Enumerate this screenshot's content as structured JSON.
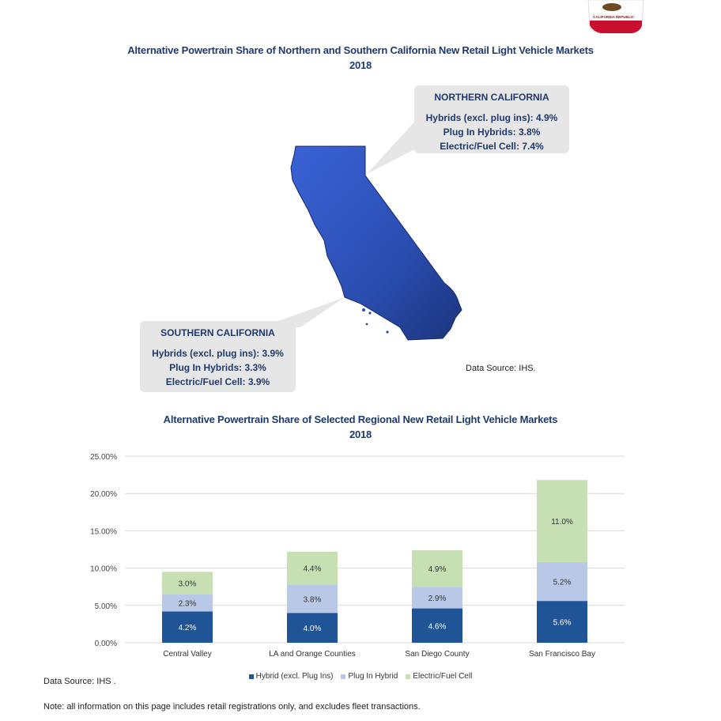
{
  "map_section": {
    "title_line1": "Alternative Powertrain Share of Northern and Southern California New Retail Light Vehicle Markets",
    "title_line2": "2018",
    "north": {
      "heading": "NORTHERN CALIFORNIA",
      "line1": "Hybrids (excl. plug ins): 4.9%",
      "line2": "Plug In Hybrids: 3.8%",
      "line3": "Electric/Fuel Cell: 7.4%"
    },
    "south": {
      "heading": "SOUTHERN CALIFORNIA",
      "line1": "Hybrids (excl. plug ins): 3.9%",
      "line2": "Plug In Hybrids: 3.3%",
      "line3": "Electric/Fuel Cell: 3.9%"
    },
    "source": "Data Source: IHS.",
    "map_color": "#2a4db0"
  },
  "flag_text": "CALIFORNIA REPUBLIC",
  "chart_section": {
    "title_line1": "Alternative Powertrain Share of Selected Regional New Retail Light Vehicle Markets",
    "title_line2": "2018"
  },
  "chart_data": {
    "type": "bar",
    "stacked": true,
    "categories": [
      "Central Valley",
      "LA and Orange Counties",
      "San Diego County",
      "San Francisco Bay"
    ],
    "series": [
      {
        "name": "Hybrid (excl. Plug Ins)",
        "values": [
          4.2,
          4.0,
          4.6,
          5.6
        ],
        "labels": [
          "4.2%",
          "4.0%",
          "4.6%",
          "5.6%"
        ],
        "color": "#1f5596"
      },
      {
        "name": "Plug In Hybrid",
        "values": [
          2.3,
          3.8,
          2.9,
          5.2
        ],
        "labels": [
          "2.3%",
          "3.8%",
          "2.9%",
          "5.2%"
        ],
        "color": "#b8c8e6"
      },
      {
        "name": "Electric/Fuel Cell",
        "values": [
          3.0,
          4.4,
          4.9,
          11.0
        ],
        "labels": [
          "3.0%",
          "4.4%",
          "4.9%",
          "11.0%"
        ],
        "color": "#c6e0b4"
      }
    ],
    "yticks": [
      "0.00%",
      "5.00%",
      "10.00%",
      "15.00%",
      "20.00%",
      "25.00%"
    ],
    "ylim": [
      0,
      25
    ],
    "grid": true,
    "legend_position": "bottom"
  },
  "footer": {
    "source": "Data Source: IHS .",
    "note": "Note: all information on this page includes retail registrations only, and excludes fleet transactions."
  }
}
